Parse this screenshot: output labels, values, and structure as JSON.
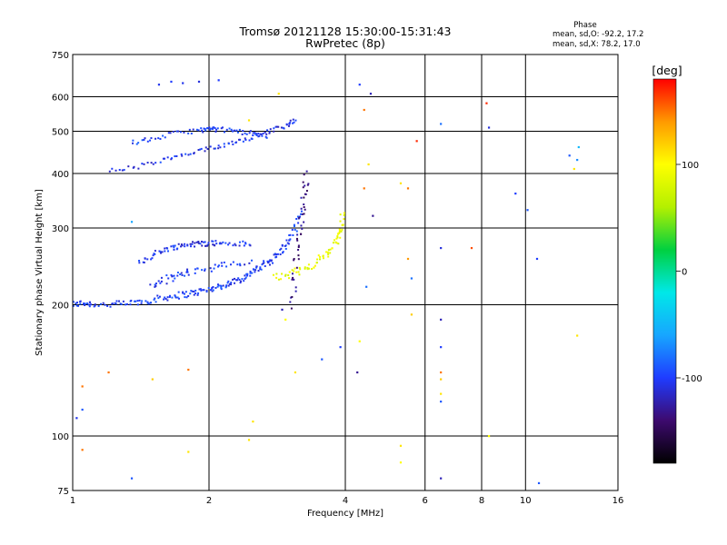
{
  "chart_data": {
    "type": "scatter",
    "title": "Tromsø 20121128 15:30:00-15:31:43",
    "subtitle": "RwPretec (8p)",
    "xlabel": "Frequency [MHz]",
    "ylabel": "Stationary phase Virtual Height [km]",
    "x_scale": "log",
    "y_scale": "log",
    "xlim": [
      1,
      16
    ],
    "ylim": [
      75,
      750
    ],
    "x_ticks": [
      1,
      2,
      4,
      6,
      8,
      10,
      16
    ],
    "y_ticks": [
      75,
      100,
      200,
      300,
      400,
      500,
      600,
      750
    ],
    "x_gridlines": [
      2,
      4,
      6,
      8,
      10
    ],
    "y_gridlines": [
      100,
      200,
      300,
      400,
      500,
      600
    ],
    "grid": true,
    "phase_stats": {
      "heading": "Phase",
      "line_o": "mean, sd,O: -92.2, 17.2",
      "line_x": "mean, sd,X:  78.2, 17.0"
    },
    "colorbar": {
      "label": "[deg]",
      "min": -180,
      "max": 180,
      "ticks": [
        100,
        0,
        -100
      ],
      "colormap": [
        "#000000",
        "#3d0a6e",
        "#1f3cff",
        "#17a6ff",
        "#00e8e8",
        "#00d040",
        "#b4f000",
        "#ffff00",
        "#ff9a00",
        "#ff0000"
      ]
    },
    "traces": [
      {
        "points": [
          [
            1.0,
            200
          ],
          [
            1.05,
            202
          ],
          [
            1.1,
            201
          ],
          [
            1.2,
            200
          ],
          [
            1.3,
            201
          ],
          [
            1.4,
            203
          ],
          [
            1.5,
            205
          ],
          [
            1.6,
            208
          ],
          [
            1.7,
            210
          ],
          [
            1.8,
            212
          ],
          [
            1.9,
            214
          ],
          [
            2.0,
            217
          ],
          [
            2.1,
            220
          ],
          [
            2.2,
            223
          ],
          [
            2.3,
            227
          ],
          [
            2.4,
            232
          ],
          [
            2.5,
            238
          ],
          [
            2.6,
            244
          ],
          [
            2.7,
            250
          ],
          [
            2.8,
            258
          ],
          [
            2.9,
            268
          ],
          [
            3.0,
            280
          ],
          [
            3.1,
            300
          ],
          [
            3.2,
            330
          ]
        ],
        "phase": -100,
        "spread": 0.035
      },
      {
        "points": [
          [
            1.4,
            250
          ],
          [
            1.5,
            260
          ],
          [
            1.6,
            268
          ],
          [
            1.7,
            272
          ],
          [
            1.8,
            275
          ],
          [
            1.9,
            276
          ],
          [
            2.0,
            277
          ],
          [
            2.1,
            277
          ],
          [
            2.3,
            276
          ],
          [
            2.5,
            275
          ]
        ],
        "phase": -105,
        "spread": 0.03
      },
      {
        "points": [
          [
            1.5,
            220
          ],
          [
            1.6,
            228
          ],
          [
            1.7,
            233
          ],
          [
            1.8,
            238
          ],
          [
            2.0,
            243
          ],
          [
            2.2,
            246
          ],
          [
            2.5,
            252
          ]
        ],
        "phase": -100,
        "spread": 0.04
      },
      {
        "points": [
          [
            1.2,
            405
          ],
          [
            1.4,
            415
          ],
          [
            1.6,
            430
          ],
          [
            1.8,
            443
          ],
          [
            2.0,
            455
          ],
          [
            2.2,
            468
          ],
          [
            2.4,
            480
          ],
          [
            2.6,
            492
          ],
          [
            2.8,
            505
          ],
          [
            3.0,
            520
          ],
          [
            3.1,
            530
          ]
        ],
        "phase": -105,
        "spread": 0.025
      },
      {
        "points": [
          [
            1.35,
            470
          ],
          [
            1.5,
            480
          ],
          [
            1.7,
            495
          ],
          [
            1.9,
            503
          ],
          [
            2.0,
            505
          ],
          [
            2.1,
            505
          ],
          [
            2.3,
            500
          ],
          [
            2.5,
            495
          ],
          [
            2.7,
            485
          ]
        ],
        "phase": -100,
        "spread": 0.025
      },
      {
        "points": [
          [
            3.05,
            200
          ],
          [
            3.1,
            240
          ],
          [
            3.15,
            280
          ],
          [
            3.2,
            320
          ],
          [
            3.25,
            360
          ],
          [
            3.3,
            400
          ]
        ],
        "phase": -135,
        "spread": 0.05
      },
      {
        "points": [
          [
            2.8,
            232
          ],
          [
            3.0,
            235
          ],
          [
            3.2,
            240
          ],
          [
            3.4,
            248
          ],
          [
            3.6,
            258
          ],
          [
            3.75,
            270
          ],
          [
            3.85,
            285
          ],
          [
            3.92,
            300
          ],
          [
            3.95,
            325
          ]
        ],
        "phase": 90,
        "spread": 0.04
      }
    ],
    "scatter": [
      {
        "x": 1.55,
        "y": 640,
        "phase": -105
      },
      {
        "x": 1.65,
        "y": 650,
        "phase": -100
      },
      {
        "x": 1.75,
        "y": 645,
        "phase": -105
      },
      {
        "x": 1.9,
        "y": 650,
        "phase": -110
      },
      {
        "x": 2.1,
        "y": 655,
        "phase": -100
      },
      {
        "x": 1.02,
        "y": 110,
        "phase": -105
      },
      {
        "x": 1.05,
        "y": 115,
        "phase": -90
      },
      {
        "x": 1.05,
        "y": 130,
        "phase": 150
      },
      {
        "x": 1.05,
        "y": 93,
        "phase": 150
      },
      {
        "x": 1.2,
        "y": 140,
        "phase": 150
      },
      {
        "x": 1.5,
        "y": 135,
        "phase": 120
      },
      {
        "x": 1.8,
        "y": 142,
        "phase": 150
      },
      {
        "x": 1.8,
        "y": 92,
        "phase": 110
      },
      {
        "x": 2.45,
        "y": 98,
        "phase": 110
      },
      {
        "x": 2.5,
        "y": 108,
        "phase": 110
      },
      {
        "x": 1.35,
        "y": 80,
        "phase": -90
      },
      {
        "x": 1.35,
        "y": 310,
        "phase": -60
      },
      {
        "x": 2.85,
        "y": 610,
        "phase": 110
      },
      {
        "x": 2.45,
        "y": 530,
        "phase": 110
      },
      {
        "x": 2.9,
        "y": 195,
        "phase": -120
      },
      {
        "x": 2.95,
        "y": 185,
        "phase": 100
      },
      {
        "x": 3.1,
        "y": 140,
        "phase": 110
      },
      {
        "x": 3.55,
        "y": 150,
        "phase": -90
      },
      {
        "x": 3.9,
        "y": 160,
        "phase": -100
      },
      {
        "x": 4.3,
        "y": 640,
        "phase": -100
      },
      {
        "x": 4.4,
        "y": 560,
        "phase": 150
      },
      {
        "x": 4.55,
        "y": 610,
        "phase": -120
      },
      {
        "x": 4.4,
        "y": 370,
        "phase": 150
      },
      {
        "x": 4.6,
        "y": 320,
        "phase": -130
      },
      {
        "x": 4.5,
        "y": 420,
        "phase": 110
      },
      {
        "x": 4.3,
        "y": 165,
        "phase": 100
      },
      {
        "x": 4.25,
        "y": 140,
        "phase": -130
      },
      {
        "x": 4.45,
        "y": 220,
        "phase": -80
      },
      {
        "x": 5.3,
        "y": 380,
        "phase": 110
      },
      {
        "x": 5.5,
        "y": 370,
        "phase": 150
      },
      {
        "x": 5.5,
        "y": 255,
        "phase": 140
      },
      {
        "x": 5.6,
        "y": 230,
        "phase": -80
      },
      {
        "x": 5.6,
        "y": 190,
        "phase": 120
      },
      {
        "x": 5.75,
        "y": 475,
        "phase": 170
      },
      {
        "x": 5.3,
        "y": 95,
        "phase": 110
      },
      {
        "x": 5.3,
        "y": 87,
        "phase": 100
      },
      {
        "x": 6.5,
        "y": 520,
        "phase": -80
      },
      {
        "x": 6.5,
        "y": 270,
        "phase": -110
      },
      {
        "x": 6.5,
        "y": 185,
        "phase": -120
      },
      {
        "x": 6.5,
        "y": 160,
        "phase": -100
      },
      {
        "x": 6.5,
        "y": 140,
        "phase": 150
      },
      {
        "x": 6.5,
        "y": 135,
        "phase": 120
      },
      {
        "x": 6.5,
        "y": 125,
        "phase": 110
      },
      {
        "x": 6.5,
        "y": 120,
        "phase": -90
      },
      {
        "x": 6.5,
        "y": 80,
        "phase": -120
      },
      {
        "x": 7.6,
        "y": 270,
        "phase": 160
      },
      {
        "x": 8.2,
        "y": 580,
        "phase": 170
      },
      {
        "x": 8.3,
        "y": 510,
        "phase": -110
      },
      {
        "x": 8.3,
        "y": 100,
        "phase": 100
      },
      {
        "x": 9.5,
        "y": 360,
        "phase": -100
      },
      {
        "x": 10.1,
        "y": 330,
        "phase": -90
      },
      {
        "x": 10.6,
        "y": 255,
        "phase": -100
      },
      {
        "x": 10.7,
        "y": 78,
        "phase": -90
      },
      {
        "x": 12.5,
        "y": 440,
        "phase": -90
      },
      {
        "x": 12.8,
        "y": 410,
        "phase": 110
      },
      {
        "x": 13.0,
        "y": 170,
        "phase": 110
      },
      {
        "x": 13.1,
        "y": 460,
        "phase": -50
      },
      {
        "x": 13.0,
        "y": 430,
        "phase": -70
      }
    ]
  }
}
